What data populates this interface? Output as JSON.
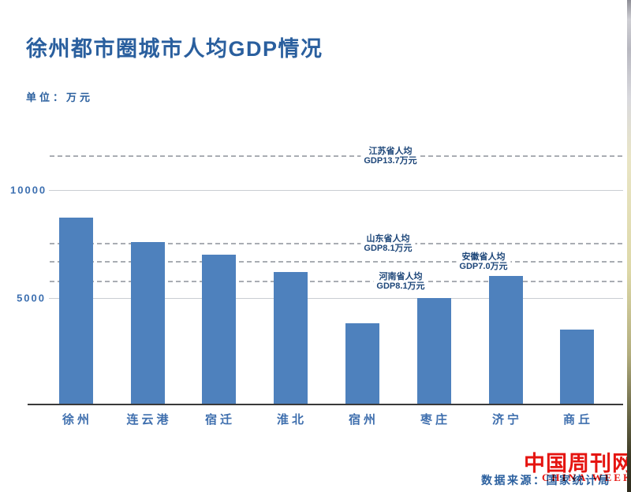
{
  "page": {
    "title": "徐州都市圈城市人均GDP情况",
    "unit_label": "单位：万元"
  },
  "chart_data": {
    "type": "bar",
    "title": "徐州都市圈城市人均GDP情况",
    "unit": "万元",
    "categories": [
      "徐州",
      "连云港",
      "宿迁",
      "淮北",
      "宿州",
      "枣庄",
      "济宁",
      "商丘"
    ],
    "values": [
      8700,
      7600,
      7000,
      6200,
      3800,
      5000,
      6000,
      3500
    ],
    "y_ticks": [
      "5000",
      "10000"
    ],
    "y_tick_values": [
      5000,
      10000
    ],
    "ylim": [
      0,
      12800
    ],
    "grid": "horizontal-solid-at-ticks",
    "legend": "none",
    "bar_color": "#4e81bd",
    "reference_lines": [
      {
        "province": "江苏省人均",
        "value_label": "GDP13.7万元",
        "plot_value": 11600
      },
      {
        "province": "山东省人均",
        "value_label": "GDP8.1万元",
        "plot_value": 7550
      },
      {
        "province": "安徽省人均",
        "value_label": "GDP7.0万元",
        "plot_value": 6700
      },
      {
        "province": "河南省人均",
        "value_label": "GDP8.1万元",
        "plot_value": 5800
      }
    ]
  },
  "footer": {
    "source_label": "数据来源：国家统计局",
    "logo_cn": "中国周刊网",
    "logo_en": "CHINA WEEKLY"
  },
  "colors": {
    "bar": "#4e81bd",
    "title_blue": "#2a5f9e",
    "annotation_blue": "#1d4679",
    "axis_dark": "#3a3a3a",
    "gridline_gray": "#c9cdd2",
    "dashed_gray": "#a9adb3",
    "logo_red": "#e51410"
  }
}
